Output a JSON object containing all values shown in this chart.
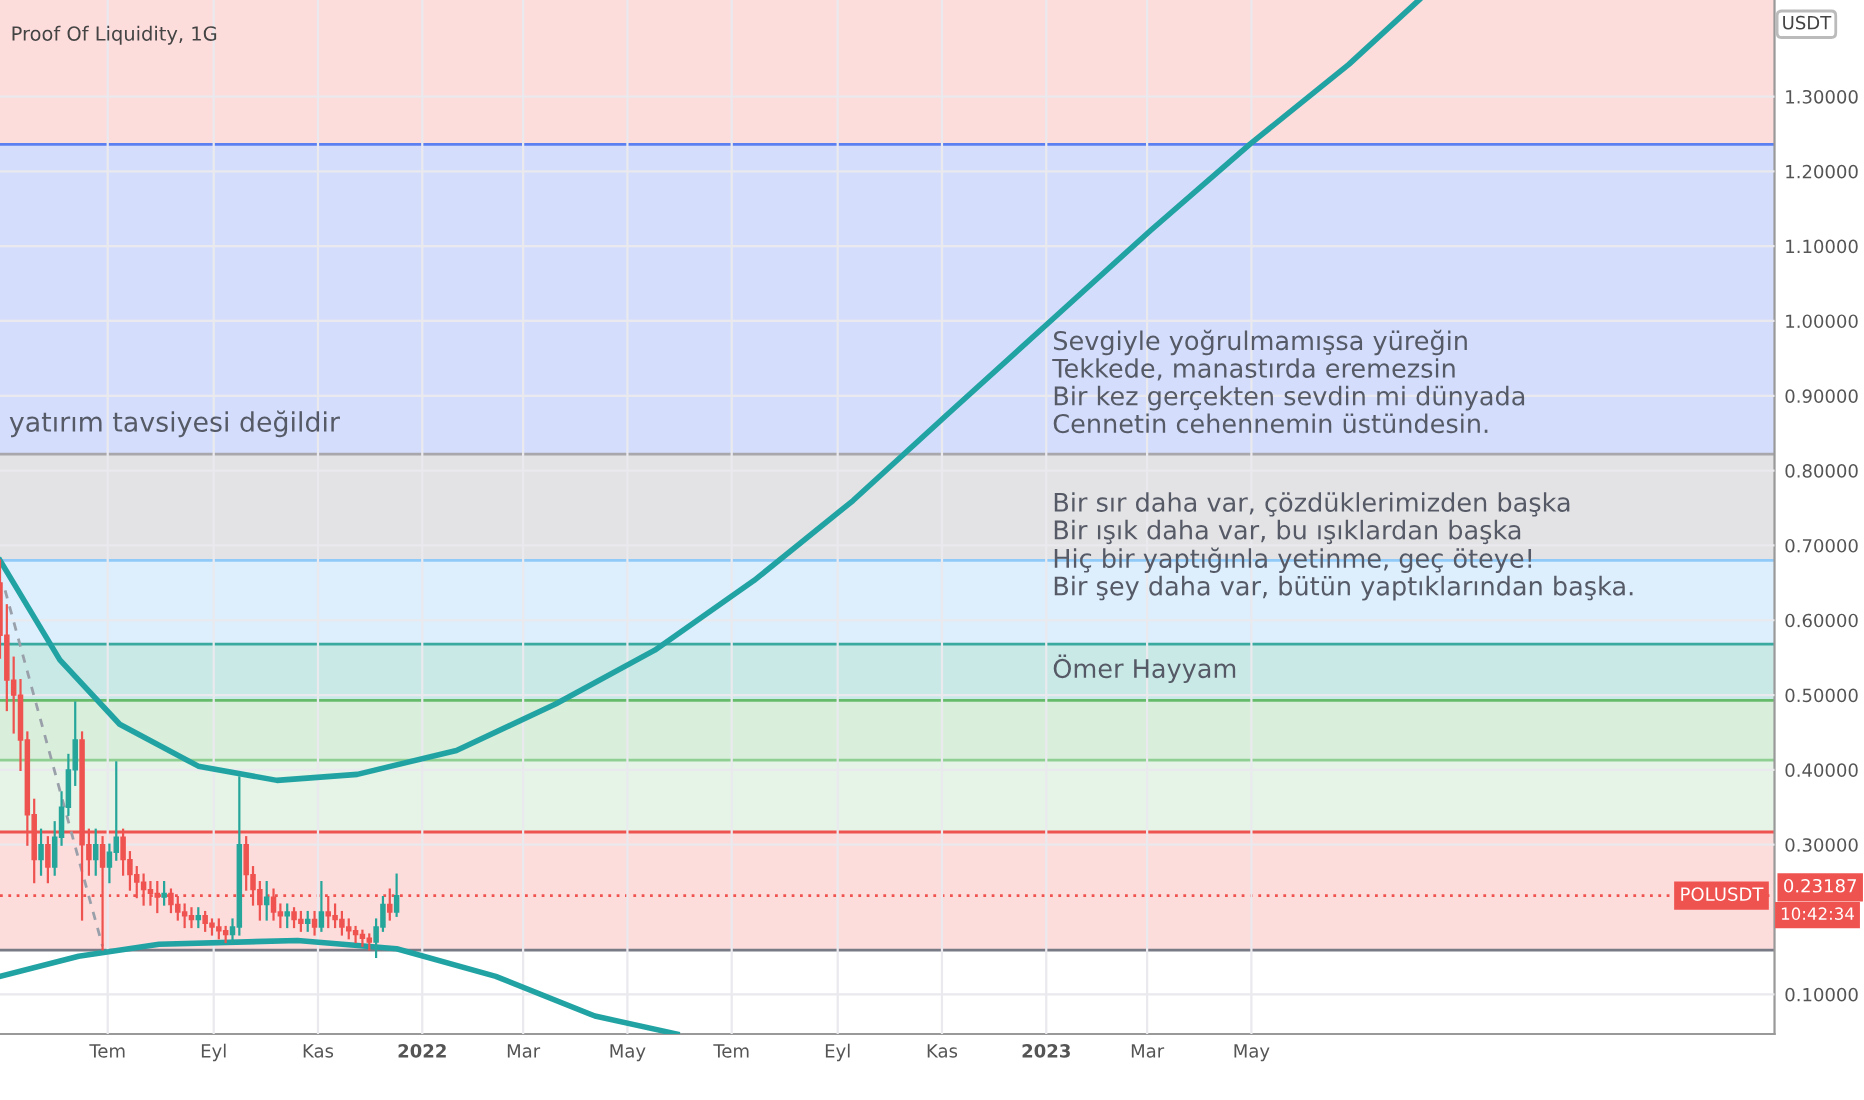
{
  "chart_data": {
    "type": "candlestick",
    "title": "Proof Of Liquidity, 1G",
    "ylabel": "USDT",
    "x": [
      "2021-04-29",
      "2021-05-03",
      "2021-05-07",
      "2021-05-11",
      "2021-05-15",
      "2021-05-19",
      "2021-05-23",
      "2021-05-27",
      "2021-05-31",
      "2021-06-04",
      "2021-06-08",
      "2021-06-12",
      "2021-06-16",
      "2021-06-20",
      "2021-06-24",
      "2021-06-28",
      "2021-07-02",
      "2021-07-06",
      "2021-07-10",
      "2021-07-14",
      "2021-07-18",
      "2021-07-22",
      "2021-07-26",
      "2021-07-30",
      "2021-08-03",
      "2021-08-07",
      "2021-08-11",
      "2021-08-15",
      "2021-08-19",
      "2021-08-23",
      "2021-08-27",
      "2021-08-31",
      "2021-09-04",
      "2021-09-08",
      "2021-09-12",
      "2021-09-16",
      "2021-09-20",
      "2021-09-24",
      "2021-09-28",
      "2021-10-02",
      "2021-10-06",
      "2021-10-10",
      "2021-10-14",
      "2021-10-18",
      "2021-10-22",
      "2021-10-26",
      "2021-10-30",
      "2021-11-03",
      "2021-11-07",
      "2021-11-11",
      "2021-11-15",
      "2021-11-19",
      "2021-11-23",
      "2021-11-27",
      "2021-12-01",
      "2021-12-05",
      "2021-12-09",
      "2021-12-13",
      "2021-12-17"
    ],
    "ohlc": [
      [
        0.65,
        0.68,
        0.55,
        0.58
      ],
      [
        0.58,
        0.62,
        0.48,
        0.52
      ],
      [
        0.52,
        0.55,
        0.45,
        0.5
      ],
      [
        0.5,
        0.52,
        0.4,
        0.44
      ],
      [
        0.44,
        0.45,
        0.3,
        0.34
      ],
      [
        0.34,
        0.36,
        0.25,
        0.28
      ],
      [
        0.28,
        0.32,
        0.26,
        0.3
      ],
      [
        0.3,
        0.31,
        0.25,
        0.27
      ],
      [
        0.27,
        0.33,
        0.26,
        0.31
      ],
      [
        0.31,
        0.37,
        0.3,
        0.35
      ],
      [
        0.35,
        0.42,
        0.34,
        0.4
      ],
      [
        0.4,
        0.49,
        0.38,
        0.44
      ],
      [
        0.44,
        0.45,
        0.2,
        0.3
      ],
      [
        0.3,
        0.32,
        0.26,
        0.28
      ],
      [
        0.28,
        0.32,
        0.26,
        0.3
      ],
      [
        0.3,
        0.31,
        0.16,
        0.27
      ],
      [
        0.27,
        0.3,
        0.25,
        0.29
      ],
      [
        0.29,
        0.41,
        0.28,
        0.31
      ],
      [
        0.31,
        0.32,
        0.26,
        0.28
      ],
      [
        0.28,
        0.29,
        0.24,
        0.26
      ],
      [
        0.26,
        0.27,
        0.23,
        0.25
      ],
      [
        0.25,
        0.26,
        0.22,
        0.24
      ],
      [
        0.24,
        0.25,
        0.22,
        0.235
      ],
      [
        0.235,
        0.25,
        0.21,
        0.23
      ],
      [
        0.23,
        0.25,
        0.22,
        0.235
      ],
      [
        0.235,
        0.24,
        0.21,
        0.22
      ],
      [
        0.22,
        0.23,
        0.2,
        0.21
      ],
      [
        0.21,
        0.22,
        0.19,
        0.205
      ],
      [
        0.205,
        0.215,
        0.19,
        0.2
      ],
      [
        0.2,
        0.215,
        0.19,
        0.205
      ],
      [
        0.205,
        0.21,
        0.185,
        0.195
      ],
      [
        0.195,
        0.2,
        0.18,
        0.19
      ],
      [
        0.19,
        0.2,
        0.175,
        0.185
      ],
      [
        0.185,
        0.19,
        0.17,
        0.18
      ],
      [
        0.18,
        0.2,
        0.17,
        0.19
      ],
      [
        0.19,
        0.39,
        0.18,
        0.3
      ],
      [
        0.3,
        0.31,
        0.24,
        0.26
      ],
      [
        0.26,
        0.27,
        0.22,
        0.24
      ],
      [
        0.24,
        0.25,
        0.2,
        0.22
      ],
      [
        0.22,
        0.25,
        0.2,
        0.23
      ],
      [
        0.23,
        0.24,
        0.2,
        0.21
      ],
      [
        0.21,
        0.22,
        0.19,
        0.205
      ],
      [
        0.205,
        0.22,
        0.19,
        0.21
      ],
      [
        0.21,
        0.215,
        0.19,
        0.2
      ],
      [
        0.2,
        0.21,
        0.185,
        0.195
      ],
      [
        0.195,
        0.21,
        0.185,
        0.2
      ],
      [
        0.2,
        0.21,
        0.18,
        0.19
      ],
      [
        0.19,
        0.25,
        0.185,
        0.21
      ],
      [
        0.21,
        0.23,
        0.19,
        0.205
      ],
      [
        0.205,
        0.22,
        0.19,
        0.2
      ],
      [
        0.2,
        0.21,
        0.18,
        0.19
      ],
      [
        0.19,
        0.2,
        0.175,
        0.185
      ],
      [
        0.185,
        0.19,
        0.17,
        0.18
      ],
      [
        0.18,
        0.185,
        0.165,
        0.175
      ],
      [
        0.175,
        0.18,
        0.16,
        0.17
      ],
      [
        0.17,
        0.2,
        0.15,
        0.19
      ],
      [
        0.19,
        0.23,
        0.185,
        0.22
      ],
      [
        0.22,
        0.24,
        0.2,
        0.21
      ],
      [
        0.21,
        0.26,
        0.205,
        0.232
      ]
    ],
    "colors": [
      "#ef5350",
      "#ef5350",
      "#ef5350",
      "#ef5350",
      "#ef5350",
      "#ef5350",
      "#26a69a",
      "#ef5350",
      "#26a69a",
      "#26a69a",
      "#26a69a",
      "#26a69a",
      "#ef5350",
      "#ef5350",
      "#26a69a",
      "#ef5350",
      "#26a69a",
      "#26a69a",
      "#ef5350",
      "#ef5350",
      "#ef5350",
      "#ef5350",
      "#ef5350",
      "#ef5350",
      "#26a69a",
      "#ef5350",
      "#ef5350",
      "#ef5350",
      "#ef5350",
      "#26a69a",
      "#ef5350",
      "#ef5350",
      "#ef5350",
      "#ef5350",
      "#26a69a",
      "#26a69a",
      "#ef5350",
      "#ef5350",
      "#ef5350",
      "#26a69a",
      "#ef5350",
      "#ef5350",
      "#26a69a",
      "#ef5350",
      "#ef5350",
      "#26a69a",
      "#ef5350",
      "#26a69a",
      "#ef5350",
      "#ef5350",
      "#ef5350",
      "#ef5350",
      "#ef5350",
      "#ef5350",
      "#ef5350",
      "#26a69a",
      "#26a69a",
      "#ef5350",
      "#26a69a"
    ],
    "series": [
      {
        "type": "line",
        "color": "#22a3a3",
        "x": [
          "2021-04-29",
          "2021-06-03",
          "2021-07-08",
          "2021-08-23",
          "2021-10-08",
          "2021-11-24",
          "2022-01-21",
          "2022-03-20",
          "2022-05-17",
          "2022-07-14",
          "2022-09-10",
          "2022-11-07",
          "2023-01-04",
          "2023-03-03",
          "2023-04-30",
          "2023-06-27",
          "2023-08-07"
        ],
        "values": [
          0.68,
          0.547,
          0.461,
          0.405,
          0.386,
          0.394,
          0.426,
          0.488,
          0.56,
          0.653,
          0.76,
          0.881,
          1.001,
          1.121,
          1.236,
          1.343,
          1.429
        ]
      },
      {
        "type": "line",
        "color": "#22a3a3",
        "x": [
          "2021-04-29",
          "2021-06-14",
          "2021-07-31",
          "2021-10-20",
          "2021-12-17",
          "2022-02-13",
          "2022-04-12",
          "2022-05-30"
        ],
        "values": [
          0.124,
          0.151,
          0.167,
          0.172,
          0.161,
          0.124,
          0.071,
          0.047
        ]
      },
      {
        "type": "line",
        "color": "#9aa0aa",
        "line_style": "dashed",
        "x": [
          "2021-05-02",
          "2021-06-28"
        ],
        "values": [
          0.64,
          0.164
        ]
      }
    ],
    "bands": [
      {
        "axis": "y",
        "from": 1.236,
        "to": 1.429,
        "color": "#fddcdc"
      },
      {
        "axis": "y",
        "from": 0.822,
        "to": 1.236,
        "color": "#d4defc"
      },
      {
        "axis": "y",
        "from": 0.68,
        "to": 0.822,
        "color": "#e3e3e5"
      },
      {
        "axis": "y",
        "from": 0.568,
        "to": 0.68,
        "color": "#ddeefc"
      },
      {
        "axis": "y",
        "from": 0.493,
        "to": 0.568,
        "color": "#c9e9e6"
      },
      {
        "axis": "y",
        "from": 0.413,
        "to": 0.493,
        "color": "#d9efdb"
      },
      {
        "axis": "y",
        "from": 0.317,
        "to": 0.413,
        "color": "#e5f4e6"
      },
      {
        "axis": "y",
        "from": 0.159,
        "to": 0.317,
        "color": "#fddcdc"
      }
    ],
    "ref_lines": [
      {
        "axis": "y",
        "value": 1.236,
        "color": "#5b7ff0"
      },
      {
        "axis": "y",
        "value": 0.822,
        "color": "#a8a8ac"
      },
      {
        "axis": "y",
        "value": 0.68,
        "color": "#90caf9"
      },
      {
        "axis": "y",
        "value": 0.568,
        "color": "#3aa9a0"
      },
      {
        "axis": "y",
        "value": 0.493,
        "color": "#66bb6a"
      },
      {
        "axis": "y",
        "value": 0.413,
        "color": "#8fcf92"
      },
      {
        "axis": "y",
        "value": 0.317,
        "color": "#ef5350"
      },
      {
        "axis": "y",
        "value": 0.159,
        "color": "#787b86"
      },
      {
        "axis": "y",
        "value": 0.23187,
        "label": "POLUSDT",
        "color": "#ef5350",
        "line_style": "dotted"
      }
    ],
    "annotations": [
      "yatırım tavsiyesi değildir",
      "Sevgiyle yoğrulmamışsa yüreğin\nTekkede, manastırda eremezsin\nBir kez gerçekten sevdin mi dünyada\nCennetin cehennemin üstündesin.",
      "Bir sır daha var, çözdüklerimizden başka\nBir ışık daha var, bu ışıklardan başka\nHiç bir yaptığınla yetinme, geç öteye!\nBir şey daha var, bütün yaptıklarından başka.",
      "Ömer Hayyam",
      "0.23187",
      "10:42:34"
    ],
    "xlim": [
      "2021-04-29",
      "2024-03-02"
    ],
    "xticks": [
      {
        "value": "2021-07-01",
        "label": "Tem"
      },
      {
        "value": "2021-09-01",
        "label": "Eyl"
      },
      {
        "value": "2021-11-01",
        "label": "Kas"
      },
      {
        "value": "2022-01-01",
        "label": "2022"
      },
      {
        "value": "2022-03-01",
        "label": "Mar"
      },
      {
        "value": "2022-05-01",
        "label": "May"
      },
      {
        "value": "2022-07-01",
        "label": "Tem"
      },
      {
        "value": "2022-09-01",
        "label": "Eyl"
      },
      {
        "value": "2022-11-01",
        "label": "Kas"
      },
      {
        "value": "2023-01-01",
        "label": "2023"
      },
      {
        "value": "2023-03-01",
        "label": "Mar"
      },
      {
        "value": "2023-05-01",
        "label": "May"
      }
    ],
    "ylim": [
      0.047,
      1.429
    ],
    "yticks": [
      {
        "value": 0.1,
        "label": "0.10000"
      },
      {
        "value": 0.3,
        "label": "0.30000"
      },
      {
        "value": 0.4,
        "label": "0.40000"
      },
      {
        "value": 0.5,
        "label": "0.50000"
      },
      {
        "value": 0.6,
        "label": "0.60000"
      },
      {
        "value": 0.7,
        "label": "0.70000"
      },
      {
        "value": 0.8,
        "label": "0.80000"
      },
      {
        "value": 0.9,
        "label": "0.90000"
      },
      {
        "value": 1.0,
        "label": "1.00000"
      },
      {
        "value": 1.1,
        "label": "1.10000"
      },
      {
        "value": 1.2,
        "label": "1.20000"
      },
      {
        "value": 1.3,
        "label": "1.30000"
      }
    ],
    "grid": true,
    "legend": false
  }
}
